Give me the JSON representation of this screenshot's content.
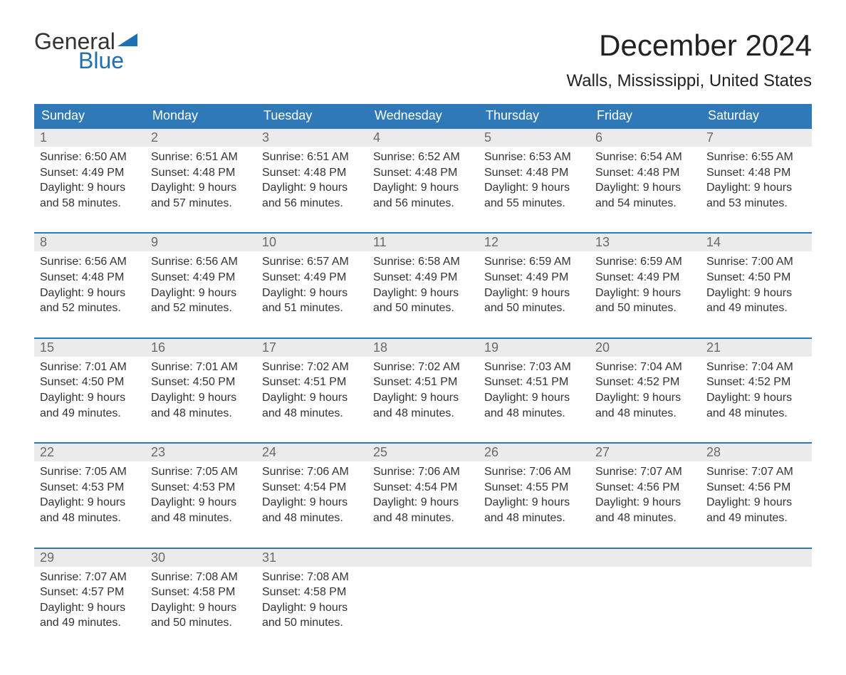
{
  "logo": {
    "word1": "General",
    "word2": "Blue"
  },
  "title": "December 2024",
  "location": "Walls, Mississippi, United States",
  "colors": {
    "header_bg": "#2f79b9",
    "header_text": "#ffffff",
    "week_border": "#2f79b9",
    "daynum_bg": "#ebebeb",
    "daynum_text": "#6a6a6a",
    "body_text": "#333333",
    "logo_blue": "#1f6fb2",
    "page_bg": "#ffffff"
  },
  "typography": {
    "title_fontsize": 42,
    "location_fontsize": 24,
    "dow_fontsize": 18,
    "daynum_fontsize": 18,
    "body_fontsize": 16,
    "logo_fontsize": 32
  },
  "labels": {
    "sunrise": "Sunrise:",
    "sunset": "Sunset:",
    "daylight": "Daylight:"
  },
  "days_of_week": [
    "Sunday",
    "Monday",
    "Tuesday",
    "Wednesday",
    "Thursday",
    "Friday",
    "Saturday"
  ],
  "weeks": [
    [
      {
        "n": "1",
        "sunrise": "6:50 AM",
        "sunset": "4:49 PM",
        "daylight": "9 hours and 58 minutes."
      },
      {
        "n": "2",
        "sunrise": "6:51 AM",
        "sunset": "4:48 PM",
        "daylight": "9 hours and 57 minutes."
      },
      {
        "n": "3",
        "sunrise": "6:51 AM",
        "sunset": "4:48 PM",
        "daylight": "9 hours and 56 minutes."
      },
      {
        "n": "4",
        "sunrise": "6:52 AM",
        "sunset": "4:48 PM",
        "daylight": "9 hours and 56 minutes."
      },
      {
        "n": "5",
        "sunrise": "6:53 AM",
        "sunset": "4:48 PM",
        "daylight": "9 hours and 55 minutes."
      },
      {
        "n": "6",
        "sunrise": "6:54 AM",
        "sunset": "4:48 PM",
        "daylight": "9 hours and 54 minutes."
      },
      {
        "n": "7",
        "sunrise": "6:55 AM",
        "sunset": "4:48 PM",
        "daylight": "9 hours and 53 minutes."
      }
    ],
    [
      {
        "n": "8",
        "sunrise": "6:56 AM",
        "sunset": "4:48 PM",
        "daylight": "9 hours and 52 minutes."
      },
      {
        "n": "9",
        "sunrise": "6:56 AM",
        "sunset": "4:49 PM",
        "daylight": "9 hours and 52 minutes."
      },
      {
        "n": "10",
        "sunrise": "6:57 AM",
        "sunset": "4:49 PM",
        "daylight": "9 hours and 51 minutes."
      },
      {
        "n": "11",
        "sunrise": "6:58 AM",
        "sunset": "4:49 PM",
        "daylight": "9 hours and 50 minutes."
      },
      {
        "n": "12",
        "sunrise": "6:59 AM",
        "sunset": "4:49 PM",
        "daylight": "9 hours and 50 minutes."
      },
      {
        "n": "13",
        "sunrise": "6:59 AM",
        "sunset": "4:49 PM",
        "daylight": "9 hours and 50 minutes."
      },
      {
        "n": "14",
        "sunrise": "7:00 AM",
        "sunset": "4:50 PM",
        "daylight": "9 hours and 49 minutes."
      }
    ],
    [
      {
        "n": "15",
        "sunrise": "7:01 AM",
        "sunset": "4:50 PM",
        "daylight": "9 hours and 49 minutes."
      },
      {
        "n": "16",
        "sunrise": "7:01 AM",
        "sunset": "4:50 PM",
        "daylight": "9 hours and 48 minutes."
      },
      {
        "n": "17",
        "sunrise": "7:02 AM",
        "sunset": "4:51 PM",
        "daylight": "9 hours and 48 minutes."
      },
      {
        "n": "18",
        "sunrise": "7:02 AM",
        "sunset": "4:51 PM",
        "daylight": "9 hours and 48 minutes."
      },
      {
        "n": "19",
        "sunrise": "7:03 AM",
        "sunset": "4:51 PM",
        "daylight": "9 hours and 48 minutes."
      },
      {
        "n": "20",
        "sunrise": "7:04 AM",
        "sunset": "4:52 PM",
        "daylight": "9 hours and 48 minutes."
      },
      {
        "n": "21",
        "sunrise": "7:04 AM",
        "sunset": "4:52 PM",
        "daylight": "9 hours and 48 minutes."
      }
    ],
    [
      {
        "n": "22",
        "sunrise": "7:05 AM",
        "sunset": "4:53 PM",
        "daylight": "9 hours and 48 minutes."
      },
      {
        "n": "23",
        "sunrise": "7:05 AM",
        "sunset": "4:53 PM",
        "daylight": "9 hours and 48 minutes."
      },
      {
        "n": "24",
        "sunrise": "7:06 AM",
        "sunset": "4:54 PM",
        "daylight": "9 hours and 48 minutes."
      },
      {
        "n": "25",
        "sunrise": "7:06 AM",
        "sunset": "4:54 PM",
        "daylight": "9 hours and 48 minutes."
      },
      {
        "n": "26",
        "sunrise": "7:06 AM",
        "sunset": "4:55 PM",
        "daylight": "9 hours and 48 minutes."
      },
      {
        "n": "27",
        "sunrise": "7:07 AM",
        "sunset": "4:56 PM",
        "daylight": "9 hours and 48 minutes."
      },
      {
        "n": "28",
        "sunrise": "7:07 AM",
        "sunset": "4:56 PM",
        "daylight": "9 hours and 49 minutes."
      }
    ],
    [
      {
        "n": "29",
        "sunrise": "7:07 AM",
        "sunset": "4:57 PM",
        "daylight": "9 hours and 49 minutes."
      },
      {
        "n": "30",
        "sunrise": "7:08 AM",
        "sunset": "4:58 PM",
        "daylight": "9 hours and 50 minutes."
      },
      {
        "n": "31",
        "sunrise": "7:08 AM",
        "sunset": "4:58 PM",
        "daylight": "9 hours and 50 minutes."
      },
      null,
      null,
      null,
      null
    ]
  ]
}
